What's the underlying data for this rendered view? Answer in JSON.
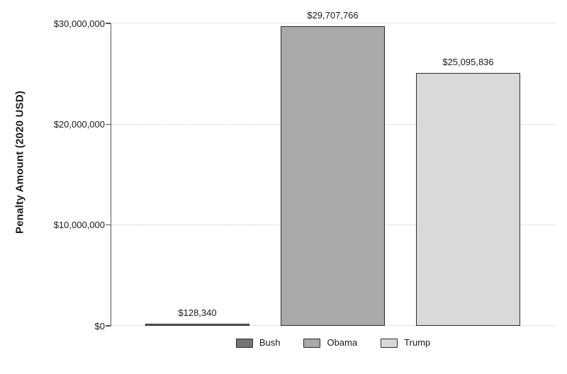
{
  "chart_data": {
    "type": "bar",
    "categories": [
      "Bush",
      "Obama",
      "Trump"
    ],
    "values": [
      128340,
      29707766,
      25095836
    ],
    "value_labels": [
      "$128,340",
      "$29,707,766",
      "$25,095,836"
    ],
    "title": "",
    "xlabel": "",
    "ylabel": "Penalty Amount (2020 USD)",
    "ylim": [
      0,
      30000000
    ],
    "yticks": [
      0,
      10000000,
      20000000,
      30000000
    ],
    "ytick_labels": [
      "$0",
      "$10,000,000",
      "$20,000,000",
      "$30,000,000"
    ],
    "grid": "horizontal-dotted",
    "bar_colors": [
      "#757575",
      "#a9a9a9",
      "#d9d9d9"
    ],
    "legend": {
      "position": "bottom",
      "entries": [
        {
          "label": "Bush",
          "color": "#757575"
        },
        {
          "label": "Obama",
          "color": "#a9a9a9"
        },
        {
          "label": "Trump",
          "color": "#d9d9d9"
        }
      ]
    }
  },
  "colors": {
    "background": "#ffffff",
    "bar_border": "#2b2b2b",
    "axis": "#555555",
    "gridline": "#cccccc",
    "text": "#1a1a1a"
  }
}
